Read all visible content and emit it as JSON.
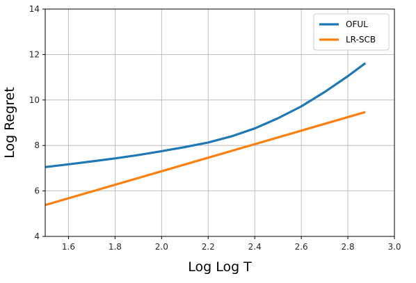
{
  "chart_data": {
    "type": "line",
    "xlabel": "Log Log T",
    "ylabel": "Log Regret",
    "xlim": [
      1.5,
      3.0
    ],
    "ylim": [
      4,
      14
    ],
    "xticks": [
      "1.6",
      "1.8",
      "2.0",
      "2.2",
      "2.4",
      "2.6",
      "2.8",
      "3.0"
    ],
    "yticks": [
      "4",
      "6",
      "8",
      "10",
      "12",
      "14"
    ],
    "grid": true,
    "legend_position": "top-right",
    "series": [
      {
        "name": "OFUL",
        "color": "#1f77b4",
        "x": [
          1.5,
          1.6,
          1.7,
          1.8,
          1.9,
          2.0,
          2.1,
          2.2,
          2.3,
          2.4,
          2.5,
          2.6,
          2.7,
          2.8,
          2.875
        ],
        "y": [
          7.05,
          7.17,
          7.3,
          7.43,
          7.58,
          7.75,
          7.93,
          8.13,
          8.4,
          8.75,
          9.2,
          9.72,
          10.35,
          11.05,
          11.62
        ]
      },
      {
        "name": "LR-SCB",
        "color": "#ff7f0e",
        "x": [
          1.5,
          2.875
        ],
        "y": [
          5.38,
          9.47
        ]
      }
    ]
  }
}
